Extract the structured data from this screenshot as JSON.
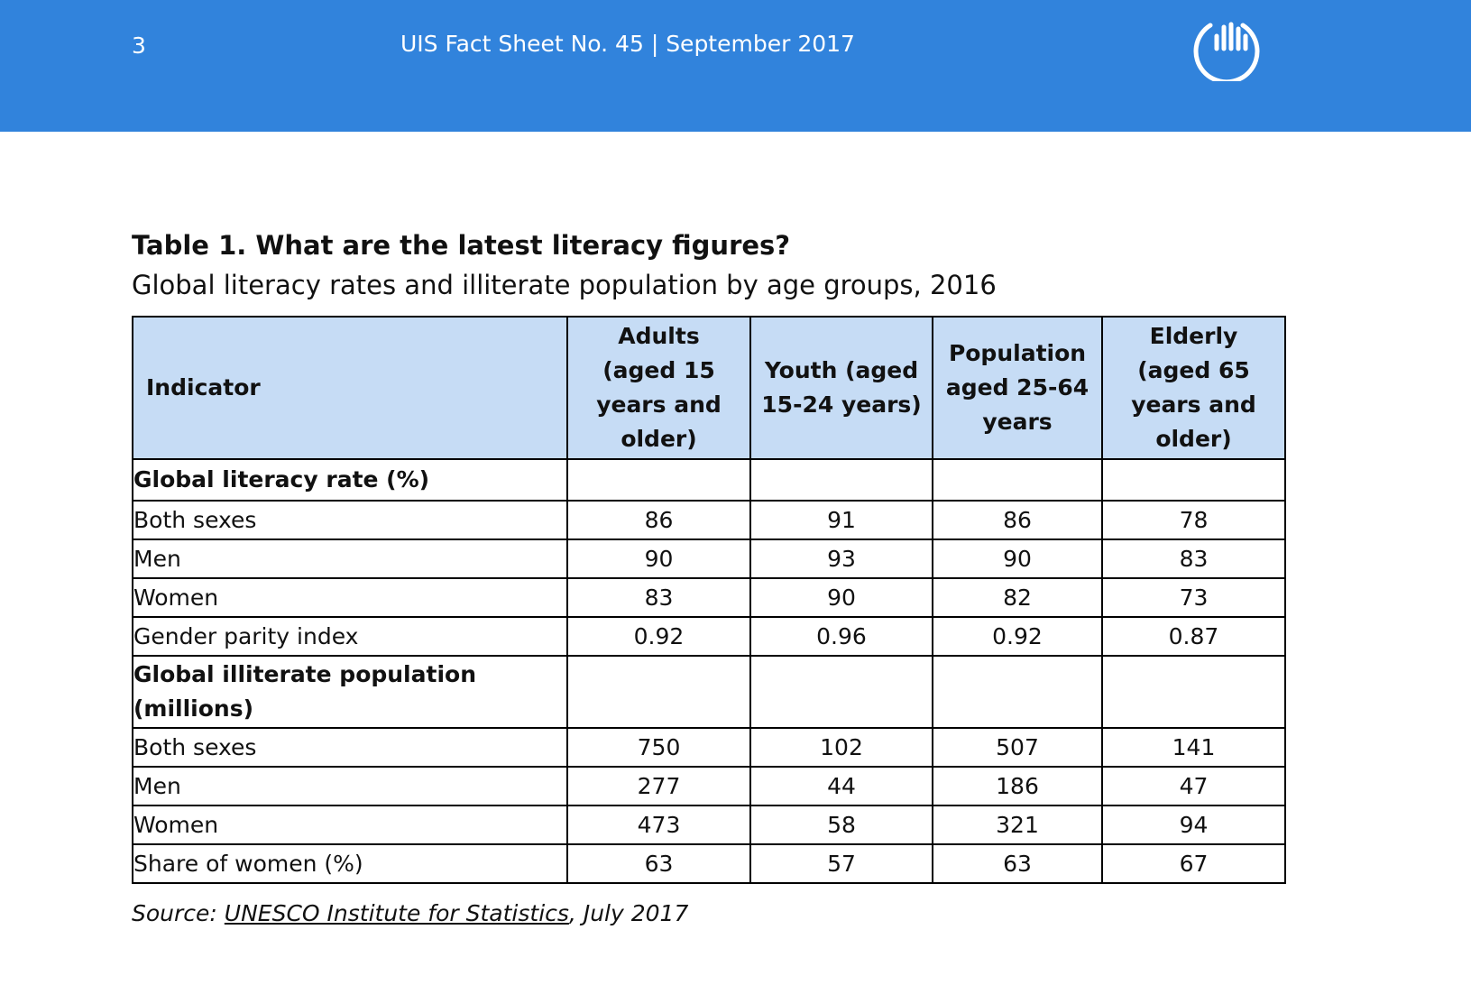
{
  "header": {
    "page_number": "3",
    "title": "UIS Fact Sheet No. 45 | September 2017"
  },
  "colors": {
    "banner": "#3183dc",
    "table_header_bg": "#c6dcf5"
  },
  "table": {
    "title": "Table 1. What are the latest literacy figures?",
    "subtitle": "Global literacy rates and illiterate population by age groups, 2016",
    "columns": [
      "Indicator",
      "Adults (aged 15 years and older)",
      "Youth (aged 15-24 years)",
      "Population aged 25-64 years",
      "Elderly (aged 65 years and older)"
    ],
    "sections": [
      {
        "title": "Global literacy rate (%)",
        "rows": [
          {
            "label": "Both sexes",
            "values": [
              "86",
              "91",
              "86",
              "78"
            ]
          },
          {
            "label": "Men",
            "values": [
              "90",
              "93",
              "90",
              "83"
            ]
          },
          {
            "label": "Women",
            "values": [
              "83",
              "90",
              "82",
              "73"
            ]
          },
          {
            "label": "Gender parity index",
            "values": [
              "0.92",
              "0.96",
              "0.92",
              "0.87"
            ]
          }
        ]
      },
      {
        "title": "Global illiterate population (millions)",
        "rows": [
          {
            "label": "Both sexes",
            "values": [
              "750",
              "102",
              "507",
              "141"
            ]
          },
          {
            "label": "Men",
            "values": [
              "277",
              "44",
              "186",
              "47"
            ]
          },
          {
            "label": "Women",
            "values": [
              "473",
              "58",
              "321",
              "94"
            ]
          },
          {
            "label": "Share of women (%)",
            "values": [
              "63",
              "57",
              "63",
              "67"
            ]
          }
        ]
      }
    ]
  },
  "source": {
    "prefix": "Source: ",
    "link_text": "UNESCO Institute for Statistics",
    "suffix": ", July 2017"
  },
  "icons": {
    "logo": "uis-hand-logo-icon"
  }
}
